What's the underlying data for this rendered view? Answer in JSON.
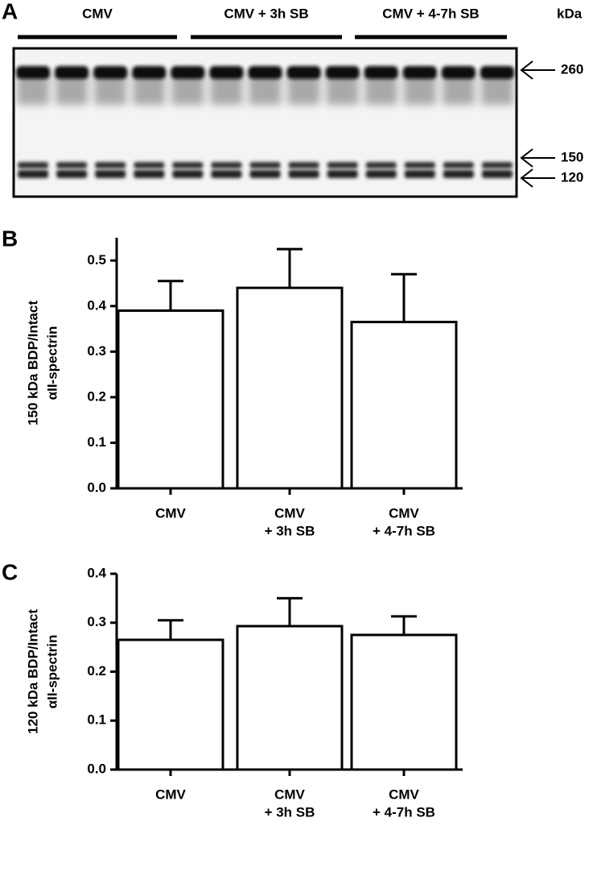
{
  "blot": {
    "panel": "A",
    "groups": [
      "CMV",
      "CMV + 3h SB",
      "CMV + 4-7h SB"
    ],
    "unit": "kDa",
    "markers": [
      260,
      150,
      120
    ]
  },
  "chart_data": [
    {
      "type": "bar",
      "panel": "B",
      "ylabel": [
        "150 kDa BDP/Intact",
        "αII-spectrin"
      ],
      "categories": [
        [
          "CMV"
        ],
        [
          "CMV",
          "+ 3h SB"
        ],
        [
          "CMV",
          "+ 4-7h SB"
        ]
      ],
      "values": [
        0.39,
        0.44,
        0.365
      ],
      "errors": [
        0.065,
        0.085,
        0.105
      ],
      "color": "#ffffff",
      "ylim": [
        0,
        0.55
      ],
      "yticks": [
        {
          "value": 0,
          "label": "0.0"
        },
        0.1,
        0.2,
        0.3,
        0.4,
        0.5
      ]
    },
    {
      "type": "bar",
      "panel": "C",
      "ylabel": [
        "120 kDa BDP/Intact",
        "αII-spectrin"
      ],
      "categories": [
        [
          "CMV"
        ],
        [
          "CMV",
          "+ 3h SB"
        ],
        [
          "CMV",
          "+ 4-7h SB"
        ]
      ],
      "values": [
        0.265,
        0.293,
        0.275
      ],
      "errors": [
        0.04,
        0.057,
        0.038
      ],
      "color": "#ffffff",
      "ylim": [
        0,
        0.4
      ],
      "yticks": [
        {
          "value": 0,
          "label": "0.0"
        },
        0.1,
        0.2,
        0.3,
        0.4
      ]
    }
  ]
}
